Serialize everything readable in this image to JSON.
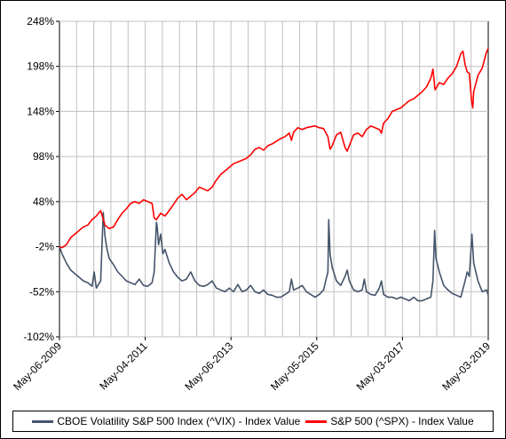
{
  "chart_data": {
    "type": "line",
    "title": "",
    "xlabel": "",
    "ylabel": "",
    "x_ticks": [
      "May-06-2009",
      "May-04-2011",
      "May-06-2013",
      "May-05-2015",
      "May-03-2017",
      "May-03-2019"
    ],
    "y_ticks": [
      "248%",
      "198%",
      "148%",
      "98%",
      "48%",
      "-2%",
      "-52%",
      "-102%"
    ],
    "y_tick_values": [
      248,
      198,
      148,
      98,
      48,
      -2,
      -52,
      -102
    ],
    "ylim": [
      -102,
      248
    ],
    "xlim": [
      2009.34,
      2019.34
    ],
    "grid": true,
    "legend_position": "bottom",
    "series": [
      {
        "name": "CBOE Volatility S&P 500 Index (^VIX) - Index Value",
        "color": "#44546a",
        "points": [
          [
            2009.34,
            -2
          ],
          [
            2009.4,
            -10
          ],
          [
            2009.5,
            -20
          ],
          [
            2009.6,
            -28
          ],
          [
            2009.7,
            -32
          ],
          [
            2009.8,
            -36
          ],
          [
            2009.9,
            -40
          ],
          [
            2010.0,
            -42
          ],
          [
            2010.1,
            -46
          ],
          [
            2010.15,
            -30
          ],
          [
            2010.2,
            -48
          ],
          [
            2010.3,
            -40
          ],
          [
            2010.36,
            36
          ],
          [
            2010.4,
            10
          ],
          [
            2010.45,
            -5
          ],
          [
            2010.5,
            -15
          ],
          [
            2010.6,
            -22
          ],
          [
            2010.7,
            -30
          ],
          [
            2010.8,
            -35
          ],
          [
            2010.9,
            -40
          ],
          [
            2011.0,
            -42
          ],
          [
            2011.1,
            -44
          ],
          [
            2011.2,
            -38
          ],
          [
            2011.3,
            -45
          ],
          [
            2011.4,
            -46
          ],
          [
            2011.5,
            -42
          ],
          [
            2011.55,
            -30
          ],
          [
            2011.6,
            25
          ],
          [
            2011.62,
            20
          ],
          [
            2011.65,
            0
          ],
          [
            2011.7,
            12
          ],
          [
            2011.75,
            -10
          ],
          [
            2011.8,
            -5
          ],
          [
            2011.9,
            -20
          ],
          [
            2012.0,
            -30
          ],
          [
            2012.1,
            -36
          ],
          [
            2012.2,
            -40
          ],
          [
            2012.3,
            -38
          ],
          [
            2012.4,
            -30
          ],
          [
            2012.5,
            -40
          ],
          [
            2012.6,
            -45
          ],
          [
            2012.7,
            -46
          ],
          [
            2012.8,
            -44
          ],
          [
            2012.9,
            -40
          ],
          [
            2013.0,
            -48
          ],
          [
            2013.1,
            -50
          ],
          [
            2013.2,
            -52
          ],
          [
            2013.3,
            -48
          ],
          [
            2013.4,
            -52
          ],
          [
            2013.5,
            -44
          ],
          [
            2013.6,
            -52
          ],
          [
            2013.7,
            -50
          ],
          [
            2013.8,
            -45
          ],
          [
            2013.9,
            -52
          ],
          [
            2014.0,
            -54
          ],
          [
            2014.1,
            -50
          ],
          [
            2014.2,
            -55
          ],
          [
            2014.3,
            -56
          ],
          [
            2014.4,
            -58
          ],
          [
            2014.5,
            -58
          ],
          [
            2014.6,
            -55
          ],
          [
            2014.7,
            -52
          ],
          [
            2014.75,
            -38
          ],
          [
            2014.8,
            -50
          ],
          [
            2014.9,
            -48
          ],
          [
            2015.0,
            -45
          ],
          [
            2015.1,
            -52
          ],
          [
            2015.2,
            -55
          ],
          [
            2015.3,
            -58
          ],
          [
            2015.4,
            -55
          ],
          [
            2015.5,
            -50
          ],
          [
            2015.55,
            -40
          ],
          [
            2015.6,
            -30
          ],
          [
            2015.62,
            28
          ],
          [
            2015.65,
            -10
          ],
          [
            2015.7,
            -25
          ],
          [
            2015.8,
            -40
          ],
          [
            2015.9,
            -45
          ],
          [
            2016.0,
            -35
          ],
          [
            2016.05,
            -28
          ],
          [
            2016.1,
            -40
          ],
          [
            2016.2,
            -50
          ],
          [
            2016.3,
            -52
          ],
          [
            2016.4,
            -50
          ],
          [
            2016.45,
            -38
          ],
          [
            2016.5,
            -52
          ],
          [
            2016.6,
            -55
          ],
          [
            2016.7,
            -56
          ],
          [
            2016.8,
            -48
          ],
          [
            2016.85,
            -40
          ],
          [
            2016.9,
            -55
          ],
          [
            2017.0,
            -58
          ],
          [
            2017.1,
            -58
          ],
          [
            2017.2,
            -60
          ],
          [
            2017.3,
            -58
          ],
          [
            2017.4,
            -60
          ],
          [
            2017.5,
            -62
          ],
          [
            2017.6,
            -58
          ],
          [
            2017.7,
            -62
          ],
          [
            2017.8,
            -62
          ],
          [
            2017.9,
            -60
          ],
          [
            2018.0,
            -58
          ],
          [
            2018.05,
            -40
          ],
          [
            2018.09,
            16
          ],
          [
            2018.12,
            -15
          ],
          [
            2018.2,
            -30
          ],
          [
            2018.3,
            -45
          ],
          [
            2018.4,
            -50
          ],
          [
            2018.5,
            -54
          ],
          [
            2018.6,
            -56
          ],
          [
            2018.7,
            -58
          ],
          [
            2018.8,
            -40
          ],
          [
            2018.85,
            -30
          ],
          [
            2018.9,
            -35
          ],
          [
            2018.96,
            12
          ],
          [
            2019.0,
            -20
          ],
          [
            2019.1,
            -40
          ],
          [
            2019.2,
            -52
          ],
          [
            2019.3,
            -50
          ],
          [
            2019.34,
            -56
          ]
        ]
      },
      {
        "name": "S&P 500 (^SPX) - Index Value",
        "color": "#ff0000",
        "points": [
          [
            2009.34,
            -2
          ],
          [
            2009.4,
            -3
          ],
          [
            2009.5,
            0
          ],
          [
            2009.6,
            8
          ],
          [
            2009.7,
            12
          ],
          [
            2009.8,
            16
          ],
          [
            2009.9,
            20
          ],
          [
            2010.0,
            22
          ],
          [
            2010.1,
            28
          ],
          [
            2010.2,
            32
          ],
          [
            2010.3,
            38
          ],
          [
            2010.4,
            22
          ],
          [
            2010.5,
            18
          ],
          [
            2010.6,
            20
          ],
          [
            2010.7,
            28
          ],
          [
            2010.8,
            35
          ],
          [
            2010.9,
            40
          ],
          [
            2011.0,
            46
          ],
          [
            2011.1,
            48
          ],
          [
            2011.2,
            46
          ],
          [
            2011.3,
            50
          ],
          [
            2011.4,
            48
          ],
          [
            2011.5,
            46
          ],
          [
            2011.55,
            30
          ],
          [
            2011.6,
            28
          ],
          [
            2011.7,
            35
          ],
          [
            2011.8,
            32
          ],
          [
            2011.9,
            38
          ],
          [
            2012.0,
            45
          ],
          [
            2012.1,
            52
          ],
          [
            2012.2,
            56
          ],
          [
            2012.3,
            50
          ],
          [
            2012.4,
            54
          ],
          [
            2012.5,
            58
          ],
          [
            2012.6,
            64
          ],
          [
            2012.7,
            62
          ],
          [
            2012.8,
            60
          ],
          [
            2012.9,
            64
          ],
          [
            2013.0,
            72
          ],
          [
            2013.1,
            78
          ],
          [
            2013.2,
            82
          ],
          [
            2013.3,
            86
          ],
          [
            2013.4,
            90
          ],
          [
            2013.5,
            92
          ],
          [
            2013.6,
            94
          ],
          [
            2013.7,
            96
          ],
          [
            2013.8,
            100
          ],
          [
            2013.9,
            106
          ],
          [
            2014.0,
            108
          ],
          [
            2014.1,
            105
          ],
          [
            2014.2,
            110
          ],
          [
            2014.3,
            112
          ],
          [
            2014.4,
            115
          ],
          [
            2014.5,
            118
          ],
          [
            2014.6,
            120
          ],
          [
            2014.7,
            124
          ],
          [
            2014.75,
            116
          ],
          [
            2014.8,
            125
          ],
          [
            2014.9,
            130
          ],
          [
            2015.0,
            128
          ],
          [
            2015.1,
            130
          ],
          [
            2015.2,
            131
          ],
          [
            2015.3,
            132
          ],
          [
            2015.4,
            130
          ],
          [
            2015.5,
            129
          ],
          [
            2015.6,
            120
          ],
          [
            2015.65,
            106
          ],
          [
            2015.7,
            110
          ],
          [
            2015.8,
            122
          ],
          [
            2015.9,
            125
          ],
          [
            2016.0,
            108
          ],
          [
            2016.05,
            104
          ],
          [
            2016.1,
            110
          ],
          [
            2016.2,
            122
          ],
          [
            2016.3,
            124
          ],
          [
            2016.4,
            120
          ],
          [
            2016.5,
            128
          ],
          [
            2016.6,
            132
          ],
          [
            2016.7,
            130
          ],
          [
            2016.8,
            128
          ],
          [
            2016.85,
            124
          ],
          [
            2016.9,
            135
          ],
          [
            2017.0,
            140
          ],
          [
            2017.1,
            148
          ],
          [
            2017.2,
            150
          ],
          [
            2017.3,
            152
          ],
          [
            2017.4,
            156
          ],
          [
            2017.5,
            160
          ],
          [
            2017.6,
            162
          ],
          [
            2017.7,
            166
          ],
          [
            2017.8,
            170
          ],
          [
            2017.9,
            175
          ],
          [
            2018.0,
            185
          ],
          [
            2018.05,
            195
          ],
          [
            2018.1,
            172
          ],
          [
            2018.2,
            180
          ],
          [
            2018.3,
            178
          ],
          [
            2018.4,
            185
          ],
          [
            2018.5,
            190
          ],
          [
            2018.6,
            198
          ],
          [
            2018.7,
            212
          ],
          [
            2018.75,
            215
          ],
          [
            2018.8,
            200
          ],
          [
            2018.85,
            192
          ],
          [
            2018.9,
            190
          ],
          [
            2018.95,
            160
          ],
          [
            2018.98,
            152
          ],
          [
            2019.0,
            170
          ],
          [
            2019.1,
            188
          ],
          [
            2019.2,
            196
          ],
          [
            2019.3,
            214
          ],
          [
            2019.34,
            218
          ]
        ]
      }
    ]
  }
}
